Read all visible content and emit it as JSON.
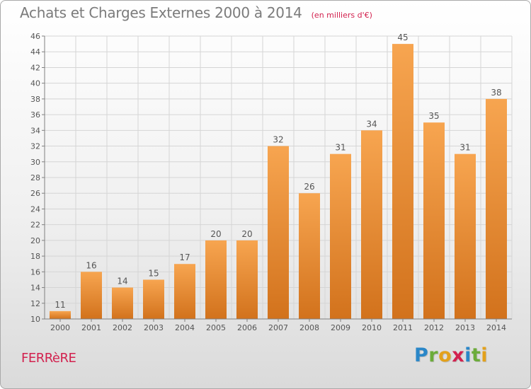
{
  "header": {
    "title": "Achats et Charges Externes 2000 à 2014",
    "subtitle": "(en milliers d'€)"
  },
  "footer": {
    "location": "FERRèRE",
    "logo_text": "Proxiti"
  },
  "colors": {
    "bar_light": "#f7a550",
    "bar_dark": "#d2721c",
    "title": "#7b7b7b",
    "accent": "#d2214e",
    "grid": "#d5d5d5",
    "axis": "#808080"
  },
  "chart_data": {
    "type": "bar",
    "title": "Achats et Charges Externes 2000 à 2014",
    "subtitle": "(en milliers d'€)",
    "xlabel": "",
    "ylabel": "",
    "categories": [
      "2000",
      "2001",
      "2002",
      "2003",
      "2004",
      "2005",
      "2006",
      "2007",
      "2008",
      "2009",
      "2010",
      "2011",
      "2012",
      "2013",
      "2014"
    ],
    "values": [
      11,
      16,
      14,
      15,
      17,
      20,
      20,
      32,
      26,
      31,
      34,
      45,
      35,
      31,
      38
    ],
    "ylim": [
      10,
      46
    ],
    "yticks": [
      10,
      12,
      14,
      16,
      18,
      20,
      22,
      24,
      26,
      28,
      30,
      32,
      34,
      36,
      38,
      40,
      42,
      44,
      46
    ],
    "grid": true,
    "data_labels": true
  }
}
